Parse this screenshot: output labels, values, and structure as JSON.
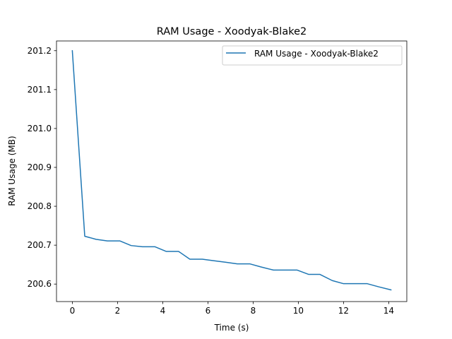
{
  "chart_data": {
    "type": "line",
    "title": "RAM Usage - Xoodyak-Blake2",
    "xlabel": "Time (s)",
    "ylabel": "RAM Usage (MB)",
    "xlim": [
      -0.7,
      14.8
    ],
    "ylim": [
      200.555,
      201.225
    ],
    "xticks": [
      0,
      2,
      4,
      6,
      8,
      10,
      12,
      14
    ],
    "yticks": [
      200.6,
      200.7,
      200.8,
      200.9,
      201.0,
      201.1,
      201.2
    ],
    "xtick_labels": [
      "0",
      "2",
      "4",
      "6",
      "8",
      "10",
      "12",
      "14"
    ],
    "ytick_labels": [
      "200.6",
      "200.7",
      "200.8",
      "200.9",
      "201.0",
      "201.1",
      "201.2"
    ],
    "grid": false,
    "legend_position": "top-right",
    "series": [
      {
        "name": "RAM Usage - Xoodyak-Blake2",
        "color": "#1f77b4",
        "x": [
          0.0,
          0.55,
          1.05,
          1.55,
          2.1,
          2.6,
          3.1,
          3.65,
          4.15,
          4.7,
          5.2,
          5.75,
          6.25,
          6.8,
          7.3,
          7.85,
          8.35,
          8.9,
          9.4,
          9.95,
          10.45,
          10.95,
          11.5,
          12.0,
          12.5,
          13.05,
          13.55,
          14.1
        ],
        "y": [
          201.2,
          200.723,
          200.715,
          200.711,
          200.711,
          200.699,
          200.696,
          200.696,
          200.684,
          200.684,
          200.664,
          200.664,
          200.66,
          200.656,
          200.652,
          200.652,
          200.644,
          200.636,
          200.636,
          200.636,
          200.625,
          200.625,
          200.609,
          200.601,
          200.601,
          200.601,
          200.593,
          200.585
        ]
      }
    ]
  }
}
